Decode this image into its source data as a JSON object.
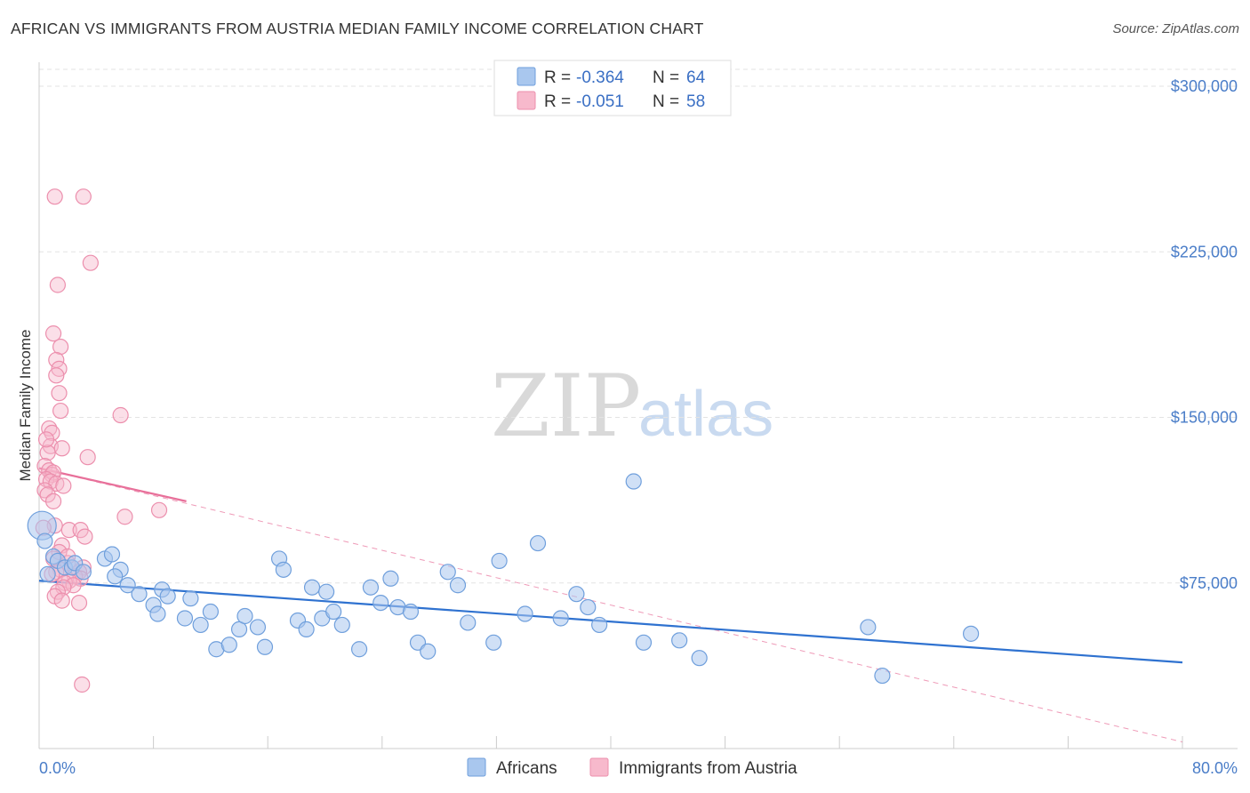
{
  "title": "AFRICAN VS IMMIGRANTS FROM AUSTRIA MEDIAN FAMILY INCOME CORRELATION CHART",
  "source": "Source: ZipAtlas.com",
  "watermark": {
    "zip": "ZIP",
    "atlas": "atlas"
  },
  "legend": {
    "r_label": "R =",
    "n_label": "N =",
    "africans": {
      "r": "-0.364",
      "n": "64"
    },
    "austria": {
      "r": "-0.051",
      "n": "58"
    }
  },
  "colors": {
    "africans_fill": "#a9c7ee",
    "africans_stroke": "#6f9fdc",
    "africans_line": "#2f72d0",
    "austria_fill": "#f7b9cc",
    "austria_stroke": "#ec8fad",
    "austria_line": "#e8709a",
    "tick_text": "#4a7dc8"
  },
  "chart_data": {
    "type": "scatter",
    "title": "AFRICAN VS IMMIGRANTS FROM AUSTRIA MEDIAN FAMILY INCOME CORRELATION CHART",
    "xlabel": "",
    "ylabel": "Median Family Income",
    "xlim": [
      0,
      80
    ],
    "ylim": [
      0,
      310000
    ],
    "x_tick_labels": [
      "0.0%",
      "80.0%"
    ],
    "y_ticks": [
      75000,
      150000,
      225000,
      300000
    ],
    "y_tick_labels": [
      "$75,000",
      "$150,000",
      "$225,000",
      "$300,000"
    ],
    "series": [
      {
        "name": "Africans",
        "trend": {
          "x": [
            0,
            80
          ],
          "y": [
            76000,
            39000
          ]
        },
        "points": [
          [
            0.2,
            101000
          ],
          [
            0.4,
            94000
          ],
          [
            1.0,
            87000
          ],
          [
            1.3,
            85000
          ],
          [
            1.8,
            82000
          ],
          [
            2.3,
            82000
          ],
          [
            2.5,
            84000
          ],
          [
            3.1,
            80000
          ],
          [
            4.6,
            86000
          ],
          [
            5.1,
            88000
          ],
          [
            5.7,
            81000
          ],
          [
            5.3,
            78000
          ],
          [
            6.2,
            74000
          ],
          [
            7.0,
            70000
          ],
          [
            8.0,
            65000
          ],
          [
            8.3,
            61000
          ],
          [
            8.6,
            72000
          ],
          [
            9.0,
            69000
          ],
          [
            10.2,
            59000
          ],
          [
            10.6,
            68000
          ],
          [
            11.3,
            56000
          ],
          [
            12.0,
            62000
          ],
          [
            12.4,
            45000
          ],
          [
            13.3,
            47000
          ],
          [
            14.0,
            54000
          ],
          [
            14.4,
            60000
          ],
          [
            15.3,
            55000
          ],
          [
            15.8,
            46000
          ],
          [
            16.8,
            86000
          ],
          [
            17.1,
            81000
          ],
          [
            18.1,
            58000
          ],
          [
            18.7,
            54000
          ],
          [
            19.1,
            73000
          ],
          [
            19.8,
            59000
          ],
          [
            20.1,
            71000
          ],
          [
            20.6,
            62000
          ],
          [
            21.2,
            56000
          ],
          [
            22.4,
            45000
          ],
          [
            23.2,
            73000
          ],
          [
            23.9,
            66000
          ],
          [
            24.6,
            77000
          ],
          [
            25.1,
            64000
          ],
          [
            26.0,
            62000
          ],
          [
            26.5,
            48000
          ],
          [
            27.2,
            44000
          ],
          [
            28.6,
            80000
          ],
          [
            29.3,
            74000
          ],
          [
            30.0,
            57000
          ],
          [
            31.8,
            48000
          ],
          [
            32.2,
            85000
          ],
          [
            34.0,
            61000
          ],
          [
            34.9,
            93000
          ],
          [
            36.5,
            59000
          ],
          [
            37.6,
            70000
          ],
          [
            38.4,
            64000
          ],
          [
            39.2,
            56000
          ],
          [
            41.6,
            121000
          ],
          [
            42.3,
            48000
          ],
          [
            44.8,
            49000
          ],
          [
            46.2,
            41000
          ],
          [
            58.0,
            55000
          ],
          [
            59.0,
            33000
          ],
          [
            65.2,
            52000
          ],
          [
            0.6,
            79000
          ]
        ]
      },
      {
        "name": "Immigrants from Austria",
        "trend": {
          "x": [
            0,
            10.3
          ],
          "y": [
            127000,
            112000
          ]
        },
        "trend_extended": {
          "x": [
            0,
            80
          ],
          "y": [
            127000,
            3000
          ]
        },
        "points": [
          [
            1.1,
            250000
          ],
          [
            3.1,
            250000
          ],
          [
            3.6,
            220000
          ],
          [
            1.3,
            210000
          ],
          [
            1.0,
            188000
          ],
          [
            1.5,
            182000
          ],
          [
            1.2,
            176000
          ],
          [
            1.4,
            172000
          ],
          [
            1.2,
            169000
          ],
          [
            5.7,
            151000
          ],
          [
            1.5,
            153000
          ],
          [
            0.7,
            145000
          ],
          [
            0.9,
            143000
          ],
          [
            0.8,
            137000
          ],
          [
            1.6,
            136000
          ],
          [
            0.6,
            134000
          ],
          [
            3.4,
            132000
          ],
          [
            0.4,
            128000
          ],
          [
            0.7,
            126000
          ],
          [
            0.9,
            124000
          ],
          [
            1.0,
            125000
          ],
          [
            0.5,
            122000
          ],
          [
            0.8,
            121000
          ],
          [
            1.2,
            120000
          ],
          [
            1.7,
            119000
          ],
          [
            0.4,
            117000
          ],
          [
            0.6,
            115000
          ],
          [
            1.0,
            112000
          ],
          [
            8.4,
            108000
          ],
          [
            6.0,
            105000
          ],
          [
            1.1,
            101000
          ],
          [
            0.3,
            100000
          ],
          [
            2.1,
            99000
          ],
          [
            2.9,
            99000
          ],
          [
            3.2,
            96000
          ],
          [
            1.6,
            92000
          ],
          [
            1.4,
            89000
          ],
          [
            1.0,
            86000
          ],
          [
            2.0,
            84000
          ],
          [
            3.1,
            82000
          ],
          [
            1.5,
            81000
          ],
          [
            2.8,
            80000
          ],
          [
            1.2,
            80000
          ],
          [
            0.9,
            79000
          ],
          [
            2.5,
            78000
          ],
          [
            2.9,
            77000
          ],
          [
            2.1,
            76000
          ],
          [
            1.8,
            75000
          ],
          [
            2.4,
            74000
          ],
          [
            1.7,
            73000
          ],
          [
            1.3,
            71000
          ],
          [
            1.1,
            69000
          ],
          [
            1.6,
            67000
          ],
          [
            2.8,
            66000
          ],
          [
            3.0,
            29000
          ],
          [
            0.5,
            140000
          ],
          [
            1.4,
            161000
          ],
          [
            2.0,
            87000
          ]
        ]
      }
    ],
    "legend_position": "top-center"
  }
}
